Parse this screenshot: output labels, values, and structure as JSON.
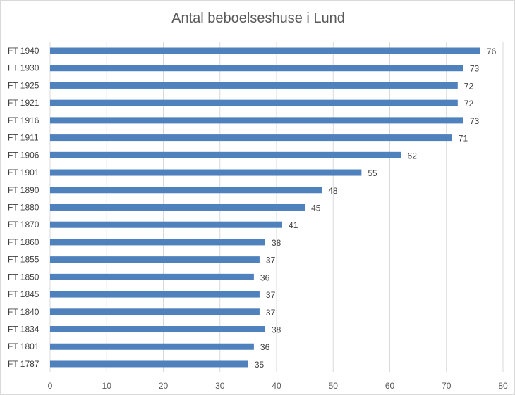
{
  "chart_data": {
    "type": "bar",
    "orientation": "horizontal",
    "title": "Antal beboelseshuse i Lund",
    "xlabel": "",
    "ylabel": "",
    "categories": [
      "FT 1940",
      "FT 1930",
      "FT 1925",
      "FT 1921",
      "FT 1916",
      "FT 1911",
      "FT 1906",
      "FT 1901",
      "FT 1890",
      "FT 1880",
      "FT 1870",
      "FT 1860",
      "FT 1855",
      "FT 1850",
      "FT 1845",
      "FT 1840",
      "FT 1834",
      "FT 1801",
      "FT 1787"
    ],
    "values": [
      76,
      73,
      72,
      72,
      73,
      71,
      62,
      55,
      48,
      45,
      41,
      38,
      37,
      36,
      37,
      37,
      38,
      36,
      35
    ],
    "xlim": [
      0,
      80
    ],
    "xticks": [
      0,
      10,
      20,
      30,
      40,
      50,
      60,
      70,
      80
    ],
    "grid": true,
    "data_labels": true,
    "legend": false,
    "bar_color": "#4f81bd",
    "grid_color": "#d9d9d9"
  }
}
